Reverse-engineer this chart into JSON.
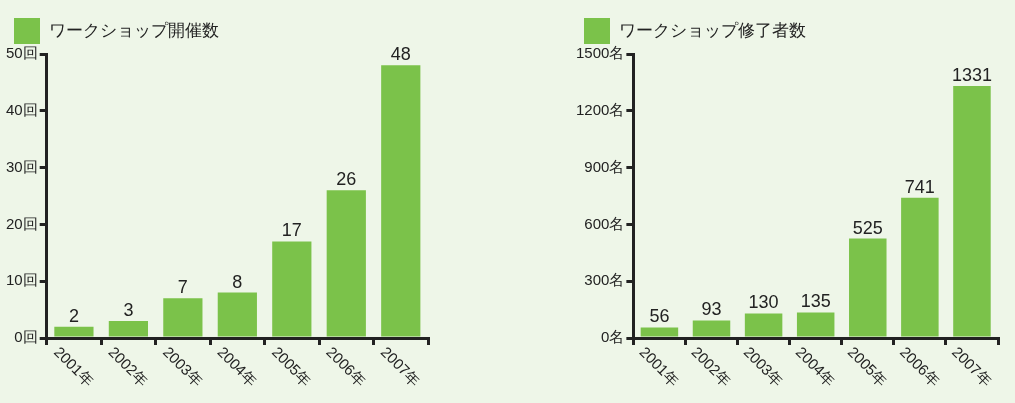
{
  "chart_data": [
    {
      "type": "bar",
      "categories": [
        "2001年",
        "2002年",
        "2003年",
        "2004年",
        "2005年",
        "2006年",
        "2007年"
      ],
      "series": [
        {
          "name": "ワークショップ開催数",
          "color": "#7bc24a",
          "values": [
            2,
            3,
            7,
            8,
            17,
            26,
            48
          ]
        }
      ],
      "ylim": [
        0,
        50
      ],
      "yticks": [
        {
          "value": 0,
          "label": "0回"
        },
        {
          "value": 10,
          "label": "10回"
        },
        {
          "value": 20,
          "label": "20回"
        },
        {
          "value": 30,
          "label": "30回"
        },
        {
          "value": 40,
          "label": "40回"
        },
        {
          "value": 50,
          "label": "50回"
        }
      ],
      "data_labels": true,
      "grid": false,
      "legend": "top left"
    },
    {
      "type": "bar",
      "categories": [
        "2001年",
        "2002年",
        "2003年",
        "2004年",
        "2005年",
        "2006年",
        "2007年"
      ],
      "series": [
        {
          "name": "ワークショップ修了者数",
          "color": "#7bc24a",
          "values": [
            56,
            93,
            130,
            135,
            525,
            741,
            1331
          ]
        }
      ],
      "ylim": [
        0,
        1500
      ],
      "yticks": [
        {
          "value": 0,
          "label": "0名"
        },
        {
          "value": 300,
          "label": "300名"
        },
        {
          "value": 600,
          "label": "600名"
        },
        {
          "value": 900,
          "label": "900名"
        },
        {
          "value": 1200,
          "label": "1200名"
        },
        {
          "value": 1500,
          "label": "1500名"
        }
      ],
      "data_labels": true,
      "grid": false,
      "legend": "top left"
    }
  ]
}
